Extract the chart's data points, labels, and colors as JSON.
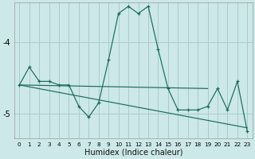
{
  "xlabel": "Humidex (Indice chaleur)",
  "bg_color": "#cce8e8",
  "line_color": "#1a6b5a",
  "grid_color": "#aacccc",
  "ylim": [
    -5.35,
    -3.45
  ],
  "xlim": [
    -0.5,
    23.5
  ],
  "yticks": [
    -5,
    -4
  ],
  "xticks": [
    0,
    1,
    2,
    3,
    4,
    5,
    6,
    7,
    8,
    9,
    10,
    11,
    12,
    13,
    14,
    15,
    16,
    17,
    18,
    19,
    20,
    21,
    22,
    23
  ],
  "main_x": [
    0,
    1,
    2,
    3,
    4,
    5,
    6,
    7,
    8,
    9,
    10,
    11,
    12,
    13,
    14,
    15,
    16,
    17,
    18,
    19,
    20,
    21,
    22,
    23
  ],
  "main_y": [
    -4.6,
    -4.35,
    -4.55,
    -4.55,
    -4.6,
    -4.6,
    -4.9,
    -5.05,
    -4.85,
    -4.25,
    -3.6,
    -3.5,
    -3.6,
    -3.5,
    -4.1,
    -4.65,
    -4.95,
    -4.95,
    -4.95,
    -4.9,
    -4.65,
    -4.95,
    -4.55,
    -5.25
  ],
  "trend1_x": [
    0,
    19
  ],
  "trend1_y": [
    -4.6,
    -4.65
  ],
  "trend2_x": [
    0,
    23
  ],
  "trend2_y": [
    -4.6,
    -5.2
  ],
  "xlabel_fontsize": 7,
  "ytick_fontsize": 7,
  "xtick_fontsize": 5.2
}
